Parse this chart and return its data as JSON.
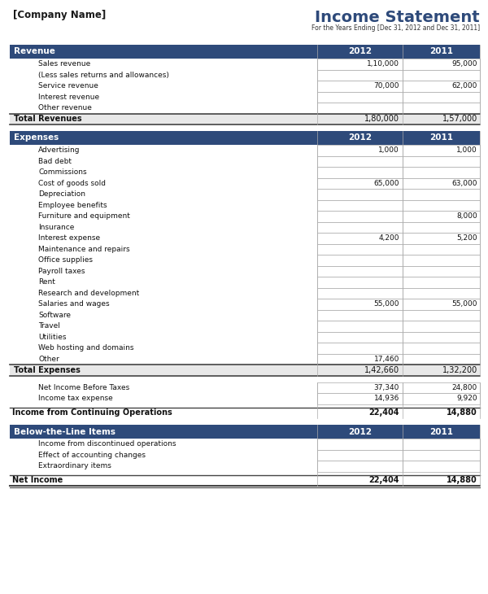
{
  "title": "Income Statement",
  "subtitle": "For the Years Ending [Dec 31, 2012 and Dec 31, 2011]",
  "company": "[Company Name]",
  "col2012": "2012",
  "col2011": "2011",
  "header_bg": "#2E4A7A",
  "header_text": "#FFFFFF",
  "total_bg": "#E8E8E8",
  "bg_color": "#FFFFFF",
  "sections": [
    {
      "type": "header",
      "label": "Revenue"
    },
    {
      "type": "item",
      "label": "Sales revenue",
      "val2012": "1,10,000",
      "val2011": "95,000",
      "indent": true
    },
    {
      "type": "item",
      "label": "(Less sales returns and allowances)",
      "val2012": "",
      "val2011": "",
      "indent": true
    },
    {
      "type": "item",
      "label": "Service revenue",
      "val2012": "70,000",
      "val2011": "62,000",
      "indent": true
    },
    {
      "type": "item",
      "label": "Interest revenue",
      "val2012": "",
      "val2011": "",
      "indent": true
    },
    {
      "type": "item",
      "label": "Other revenue",
      "val2012": "",
      "val2011": "",
      "indent": true
    },
    {
      "type": "total",
      "label": "Total Revenues",
      "val2012": "1,80,000",
      "val2011": "1,57,000"
    },
    {
      "type": "spacer"
    },
    {
      "type": "header",
      "label": "Expenses"
    },
    {
      "type": "item",
      "label": "Advertising",
      "val2012": "1,000",
      "val2011": "1,000",
      "indent": true
    },
    {
      "type": "item",
      "label": "Bad debt",
      "val2012": "",
      "val2011": "",
      "indent": true
    },
    {
      "type": "item",
      "label": "Commissions",
      "val2012": "",
      "val2011": "",
      "indent": true
    },
    {
      "type": "item",
      "label": "Cost of goods sold",
      "val2012": "65,000",
      "val2011": "63,000",
      "indent": true
    },
    {
      "type": "item",
      "label": "Depreciation",
      "val2012": "",
      "val2011": "",
      "indent": true
    },
    {
      "type": "item",
      "label": "Employee benefits",
      "val2012": "",
      "val2011": "",
      "indent": true
    },
    {
      "type": "item",
      "label": "Furniture and equipment",
      "val2012": "",
      "val2011": "8,000",
      "indent": true
    },
    {
      "type": "item",
      "label": "Insurance",
      "val2012": "",
      "val2011": "",
      "indent": true
    },
    {
      "type": "item",
      "label": "Interest expense",
      "val2012": "4,200",
      "val2011": "5,200",
      "indent": true
    },
    {
      "type": "item",
      "label": "Maintenance and repairs",
      "val2012": "",
      "val2011": "",
      "indent": true
    },
    {
      "type": "item",
      "label": "Office supplies",
      "val2012": "",
      "val2011": "",
      "indent": true
    },
    {
      "type": "item",
      "label": "Payroll taxes",
      "val2012": "",
      "val2011": "",
      "indent": true
    },
    {
      "type": "item",
      "label": "Rent",
      "val2012": "",
      "val2011": "",
      "indent": true
    },
    {
      "type": "item",
      "label": "Research and development",
      "val2012": "",
      "val2011": "",
      "indent": true
    },
    {
      "type": "item",
      "label": "Salaries and wages",
      "val2012": "55,000",
      "val2011": "55,000",
      "indent": true
    },
    {
      "type": "item",
      "label": "Software",
      "val2012": "",
      "val2011": "",
      "indent": true
    },
    {
      "type": "item",
      "label": "Travel",
      "val2012": "",
      "val2011": "",
      "indent": true
    },
    {
      "type": "item",
      "label": "Utilities",
      "val2012": "",
      "val2011": "",
      "indent": true
    },
    {
      "type": "item",
      "label": "Web hosting and domains",
      "val2012": "",
      "val2011": "",
      "indent": true
    },
    {
      "type": "item",
      "label": "Other",
      "val2012": "17,460",
      "val2011": "",
      "indent": true
    },
    {
      "type": "total",
      "label": "Total Expenses",
      "val2012": "1,42,660",
      "val2011": "1,32,200"
    },
    {
      "type": "spacer"
    },
    {
      "type": "item",
      "label": "Net Income Before Taxes",
      "val2012": "37,340",
      "val2011": "24,800",
      "indent": true
    },
    {
      "type": "item",
      "label": "Income tax expense",
      "val2012": "14,936",
      "val2011": "9,920",
      "indent": true
    },
    {
      "type": "spacer_small"
    },
    {
      "type": "bold_item",
      "label": "Income from Continuing Operations",
      "val2012": "22,404",
      "val2011": "14,880"
    },
    {
      "type": "spacer"
    },
    {
      "type": "header",
      "label": "Below-the-Line Items"
    },
    {
      "type": "item",
      "label": "Income from discontinued operations",
      "val2012": "",
      "val2011": "",
      "indent": true
    },
    {
      "type": "item",
      "label": "Effect of accounting changes",
      "val2012": "",
      "val2011": "",
      "indent": true
    },
    {
      "type": "item",
      "label": "Extraordinary items",
      "val2012": "",
      "val2011": "",
      "indent": true
    },
    {
      "type": "spacer_small"
    },
    {
      "type": "bold_item",
      "label": "Net Income",
      "val2012": "22,404",
      "val2011": "14,880",
      "double_underline": true
    }
  ]
}
